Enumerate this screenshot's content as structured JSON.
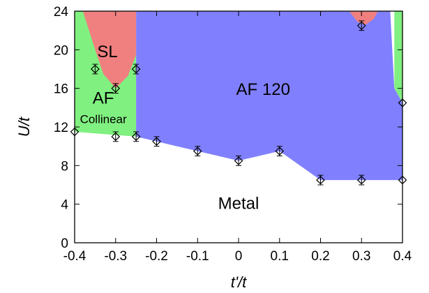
{
  "chart_data": {
    "type": "area",
    "title": "",
    "xlabel": "t'/t",
    "ylabel": "U/t",
    "xlim": [
      -0.4,
      0.4
    ],
    "ylim": [
      0,
      24
    ],
    "xticks": [
      -0.4,
      -0.3,
      -0.2,
      -0.1,
      0,
      0.1,
      0.2,
      0.3,
      0.4
    ],
    "xtick_labels": [
      "-0.4",
      "-0.3",
      "-0.2",
      "-0.1",
      "0",
      "0.1",
      "0.2",
      "0.3",
      "0.4"
    ],
    "yticks": [
      0,
      4,
      8,
      12,
      16,
      20,
      24
    ],
    "ytick_labels": [
      "0",
      "4",
      "8",
      "12",
      "16",
      "20",
      "24"
    ],
    "grid": false,
    "colors": {
      "SL": "#f08080",
      "AF Collinear": "#80f080",
      "AF 120": "#8080ff",
      "Metal": "#ffffff"
    },
    "regions": [
      {
        "name": "AF Collinear",
        "label_lines": [
          "AF",
          "Collinear"
        ],
        "label_at": [
          -0.33,
          13.7
        ],
        "polygon": [
          [
            -0.4,
            11.5
          ],
          [
            -0.4,
            24
          ],
          [
            -0.25,
            24
          ],
          [
            -0.25,
            11
          ]
        ]
      },
      {
        "name": "AF Collinear",
        "label_lines": [],
        "polygon": [
          [
            0.36,
            24
          ],
          [
            0.38,
            24
          ],
          [
            0.38,
            16
          ],
          [
            0.4,
            14.5
          ],
          [
            0.4,
            24
          ]
        ]
      },
      {
        "name": "AF 120",
        "label_lines": [
          "AF 120"
        ],
        "label_at": [
          0.06,
          15.9
        ],
        "polygon": [
          [
            -0.25,
            24
          ],
          [
            -0.25,
            11
          ],
          [
            -0.2,
            10.5
          ],
          [
            -0.1,
            9.5
          ],
          [
            0,
            8.5
          ],
          [
            0.1,
            9.5
          ],
          [
            0.2,
            6.5
          ],
          [
            0.3,
            6.5
          ],
          [
            0.4,
            6.5
          ],
          [
            0.4,
            14.5
          ],
          [
            0.38,
            16
          ],
          [
            0.37,
            24
          ]
        ]
      },
      {
        "name": "SL",
        "label_lines": [
          "SL"
        ],
        "label_at": [
          -0.32,
          19.8
        ],
        "polygon": [
          [
            -0.38,
            24
          ],
          [
            -0.35,
            20
          ],
          [
            -0.33,
            17.5
          ],
          [
            -0.3,
            16
          ],
          [
            -0.27,
            17.3
          ],
          [
            -0.25,
            19.5
          ],
          [
            -0.25,
            24
          ]
        ]
      },
      {
        "name": "SL",
        "label_lines": [],
        "polygon": [
          [
            0.27,
            24
          ],
          [
            0.29,
            22.9
          ],
          [
            0.31,
            22.6
          ],
          [
            0.33,
            23.2
          ],
          [
            0.34,
            24
          ]
        ]
      },
      {
        "name": "Metal",
        "label_lines": [
          "Metal"
        ],
        "label_at": [
          0,
          4.1
        ],
        "polygon": []
      }
    ],
    "boundary_points": [
      {
        "x": -0.4,
        "y": 11.5,
        "err": 0.0
      },
      {
        "x": -0.35,
        "y": 18,
        "err": 0.5
      },
      {
        "x": -0.3,
        "y": 16,
        "err": 0.5
      },
      {
        "x": -0.25,
        "y": 18,
        "err": 0.5
      },
      {
        "x": -0.3,
        "y": 11,
        "err": 0.5
      },
      {
        "x": -0.25,
        "y": 11,
        "err": 0.5
      },
      {
        "x": -0.2,
        "y": 10.5,
        "err": 0.5
      },
      {
        "x": -0.1,
        "y": 9.5,
        "err": 0.5
      },
      {
        "x": 0,
        "y": 8.5,
        "err": 0.5
      },
      {
        "x": 0.1,
        "y": 9.5,
        "err": 0.5
      },
      {
        "x": 0.2,
        "y": 6.5,
        "err": 0.5
      },
      {
        "x": 0.3,
        "y": 6.5,
        "err": 0.5
      },
      {
        "x": 0.4,
        "y": 6.5,
        "err": 0.0
      },
      {
        "x": 0.3,
        "y": 22.5,
        "err": 0.5
      },
      {
        "x": 0.4,
        "y": 14.5,
        "err": 0.0
      }
    ]
  }
}
